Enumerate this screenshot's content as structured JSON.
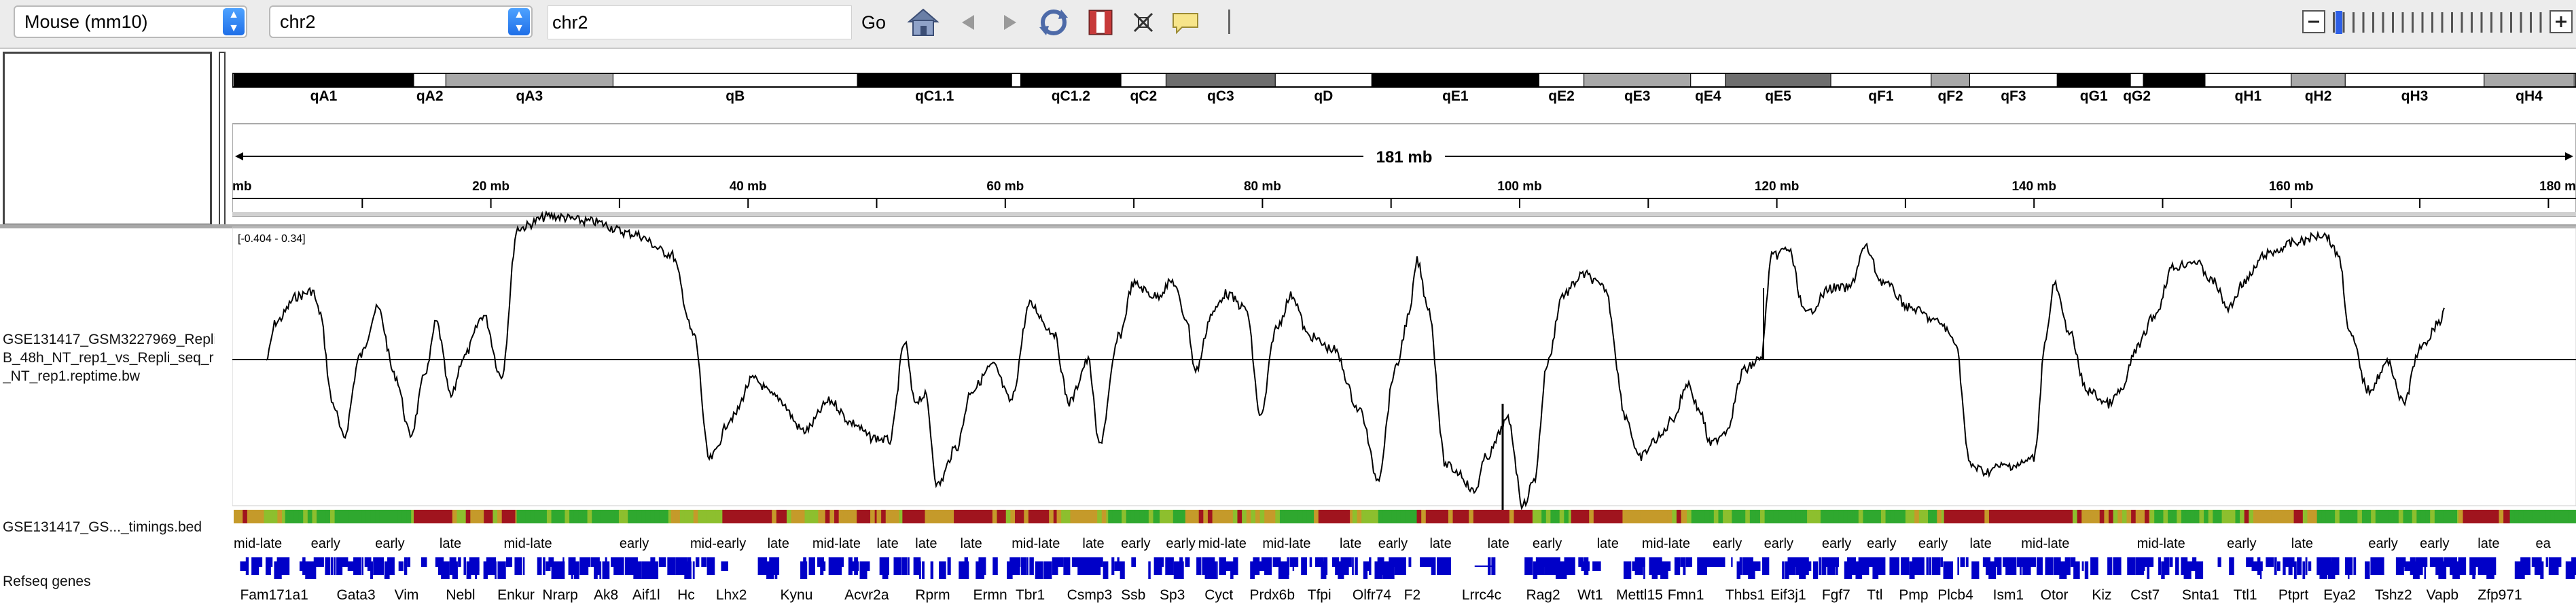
{
  "toolbar": {
    "genome": "Mouse (mm10)",
    "chromosome": "chr2",
    "locus": "chr2",
    "go_label": "Go",
    "icons": [
      "home-icon",
      "back-icon",
      "forward-icon",
      "refresh-icon",
      "roi-icon",
      "resize-icon",
      "popup-text-icon"
    ]
  },
  "ruler": {
    "span_label": "181 mb",
    "start_label": "mb",
    "end_label": "180 m",
    "ticks": [
      {
        "mb": 20,
        "label": "20 mb"
      },
      {
        "mb": 40,
        "label": "40 mb"
      },
      {
        "mb": 60,
        "label": "60 mb"
      },
      {
        "mb": 80,
        "label": "80 mb"
      },
      {
        "mb": 100,
        "label": "100 mb"
      },
      {
        "mb": 120,
        "label": "120 mb"
      },
      {
        "mb": 140,
        "label": "140 mb"
      },
      {
        "mb": 160,
        "label": "160 mb"
      }
    ]
  },
  "ideogram": {
    "bands": [
      {
        "name": "qA1",
        "start": 0,
        "end": 14,
        "stain": "black",
        "label": "qA1"
      },
      {
        "name": "qA2",
        "start": 14,
        "end": 16.5,
        "stain": "white",
        "label": "qA2"
      },
      {
        "name": "qA3",
        "start": 16.5,
        "end": 29.5,
        "stain": "gray",
        "label": "qA3"
      },
      {
        "name": "qB",
        "start": 29.5,
        "end": 48.5,
        "stain": "white",
        "label": "qB"
      },
      {
        "name": "qC1.1",
        "start": 48.5,
        "end": 60.5,
        "stain": "black",
        "label": "qC1.1"
      },
      {
        "name": "qC1.2a",
        "start": 60.5,
        "end": 61.2,
        "stain": "white",
        "label": ""
      },
      {
        "name": "qC1.2",
        "start": 61.2,
        "end": 69,
        "stain": "black",
        "label": "qC1.2"
      },
      {
        "name": "qC2",
        "start": 69,
        "end": 72.5,
        "stain": "white",
        "label": "qC2"
      },
      {
        "name": "qC3",
        "start": 72.5,
        "end": 81,
        "stain": "darkgray",
        "label": "qC3"
      },
      {
        "name": "qD",
        "start": 81,
        "end": 88.5,
        "stain": "white",
        "label": "qD"
      },
      {
        "name": "qE1",
        "start": 88.5,
        "end": 101.5,
        "stain": "black",
        "label": "qE1"
      },
      {
        "name": "qE2",
        "start": 101.5,
        "end": 105,
        "stain": "white",
        "label": "qE2"
      },
      {
        "name": "qE3",
        "start": 105,
        "end": 113.3,
        "stain": "gray",
        "label": "qE3"
      },
      {
        "name": "qE4",
        "start": 113.3,
        "end": 116,
        "stain": "white",
        "label": "qE4"
      },
      {
        "name": "qE5",
        "start": 116,
        "end": 124.2,
        "stain": "darkgray",
        "label": "qE5"
      },
      {
        "name": "qF1",
        "start": 124.2,
        "end": 132,
        "stain": "white",
        "label": "qF1"
      },
      {
        "name": "qF2",
        "start": 132,
        "end": 135,
        "stain": "gray",
        "label": "qF2"
      },
      {
        "name": "qF3",
        "start": 135,
        "end": 141.8,
        "stain": "white",
        "label": "qF3"
      },
      {
        "name": "qG1",
        "start": 141.8,
        "end": 147.5,
        "stain": "black",
        "label": "qG1"
      },
      {
        "name": "qG2",
        "start": 147.5,
        "end": 148.5,
        "stain": "white",
        "label": "qG2"
      },
      {
        "name": "qG3",
        "start": 148.5,
        "end": 153.3,
        "stain": "black",
        "label": ""
      },
      {
        "name": "qH1",
        "start": 153.3,
        "end": 160,
        "stain": "white",
        "label": "qH1"
      },
      {
        "name": "qH2",
        "start": 160,
        "end": 164.2,
        "stain": "gray",
        "label": "qH2"
      },
      {
        "name": "qH3",
        "start": 164.2,
        "end": 175,
        "stain": "white",
        "label": "qH3"
      },
      {
        "name": "qH4",
        "start": 175,
        "end": 182,
        "stain": "gray",
        "label": "qH4"
      }
    ]
  },
  "tracks": {
    "signal": {
      "name": "GSE131417_GSM3227969_Repli\nB_48h_NT_rep1_vs_Repli_seq_r\n_NT_rep1.reptime.bw",
      "range_label": "[-0.404 - 0.34]",
      "color": "#000000"
    },
    "timing": {
      "name": "GSE131417_GS..._timings.bed",
      "labels": [
        {
          "mb": 0,
          "text": "mid-late"
        },
        {
          "mb": 6,
          "text": "early"
        },
        {
          "mb": 11,
          "text": "early"
        },
        {
          "mb": 16,
          "text": "late"
        },
        {
          "mb": 21,
          "text": "mid-late"
        },
        {
          "mb": 30,
          "text": "early"
        },
        {
          "mb": 35.5,
          "text": "mid-early"
        },
        {
          "mb": 41.5,
          "text": "late"
        },
        {
          "mb": 45,
          "text": "mid-late"
        },
        {
          "mb": 50,
          "text": "late"
        },
        {
          "mb": 53,
          "text": "late"
        },
        {
          "mb": 56.5,
          "text": "late"
        },
        {
          "mb": 60.5,
          "text": "mid-late"
        },
        {
          "mb": 66,
          "text": "late"
        },
        {
          "mb": 69,
          "text": "early"
        },
        {
          "mb": 72.5,
          "text": "early"
        },
        {
          "mb": 75,
          "text": "mid-late"
        },
        {
          "mb": 80,
          "text": "mid-late"
        },
        {
          "mb": 86,
          "text": "late"
        },
        {
          "mb": 89,
          "text": "early"
        },
        {
          "mb": 93,
          "text": "late"
        },
        {
          "mb": 97.5,
          "text": "late"
        },
        {
          "mb": 101,
          "text": "early"
        },
        {
          "mb": 106,
          "text": "late"
        },
        {
          "mb": 109.5,
          "text": "mid-late"
        },
        {
          "mb": 115,
          "text": "early"
        },
        {
          "mb": 119,
          "text": "early"
        },
        {
          "mb": 123.5,
          "text": "early"
        },
        {
          "mb": 127,
          "text": "early"
        },
        {
          "mb": 131,
          "text": "early"
        },
        {
          "mb": 135,
          "text": "late"
        },
        {
          "mb": 139,
          "text": "mid-late"
        },
        {
          "mb": 148,
          "text": "mid-late"
        },
        {
          "mb": 155,
          "text": "early"
        },
        {
          "mb": 160,
          "text": "late"
        },
        {
          "mb": 166,
          "text": "early"
        },
        {
          "mb": 170,
          "text": "early"
        },
        {
          "mb": 174.5,
          "text": "late"
        },
        {
          "mb": 179,
          "text": "ea"
        }
      ]
    },
    "genes": {
      "name": "Refseq genes",
      "color": "#0000c8",
      "labels": [
        {
          "mb": 0.5,
          "text": "Fam171a1"
        },
        {
          "mb": 8,
          "text": "Gata3"
        },
        {
          "mb": 12.5,
          "text": "Vim"
        },
        {
          "mb": 16.5,
          "text": "Nebl"
        },
        {
          "mb": 20.5,
          "text": "Enkur"
        },
        {
          "mb": 24,
          "text": "Nrarp"
        },
        {
          "mb": 28,
          "text": "Ak8"
        },
        {
          "mb": 31,
          "text": "Aif1l"
        },
        {
          "mb": 34.5,
          "text": "Hc"
        },
        {
          "mb": 37.5,
          "text": "Lhx2"
        },
        {
          "mb": 42.5,
          "text": "Kynu"
        },
        {
          "mb": 47.5,
          "text": "Acvr2a"
        },
        {
          "mb": 53,
          "text": "Rprm"
        },
        {
          "mb": 57.5,
          "text": "Ermn"
        },
        {
          "mb": 60.8,
          "text": "Tbr1"
        },
        {
          "mb": 64.8,
          "text": "Csmp3"
        },
        {
          "mb": 69,
          "text": "Ssb"
        },
        {
          "mb": 72,
          "text": "Sp3"
        },
        {
          "mb": 75.5,
          "text": "Cyct"
        },
        {
          "mb": 79,
          "text": "Prdx6b"
        },
        {
          "mb": 83.5,
          "text": "Tfpi"
        },
        {
          "mb": 87,
          "text": "Olfr74"
        },
        {
          "mb": 91,
          "text": "F2"
        },
        {
          "mb": 95.5,
          "text": "Lrrc4c"
        },
        {
          "mb": 100.5,
          "text": "Rag2"
        },
        {
          "mb": 104.5,
          "text": "Wt1"
        },
        {
          "mb": 107.5,
          "text": "Mettl15"
        },
        {
          "mb": 111.5,
          "text": "Fmn1"
        },
        {
          "mb": 116,
          "text": "Thbs1"
        },
        {
          "mb": 119.5,
          "text": "Eif3j1"
        },
        {
          "mb": 123.5,
          "text": "Fgf7"
        },
        {
          "mb": 127,
          "text": "Ttl"
        },
        {
          "mb": 129.5,
          "text": "Pmp"
        },
        {
          "mb": 132.5,
          "text": "Plcb4"
        },
        {
          "mb": 136.8,
          "text": "Ism1"
        },
        {
          "mb": 140.5,
          "text": "Otor"
        },
        {
          "mb": 144.5,
          "text": "Kiz"
        },
        {
          "mb": 147.5,
          "text": "Cst7"
        },
        {
          "mb": 151.5,
          "text": "Snta1"
        },
        {
          "mb": 155.5,
          "text": "Ttl1"
        },
        {
          "mb": 159,
          "text": "Ptprt"
        },
        {
          "mb": 162.5,
          "text": "Eya2"
        },
        {
          "mb": 166.5,
          "text": "Tshz2"
        },
        {
          "mb": 170.5,
          "text": "Vapb"
        },
        {
          "mb": 174.5,
          "text": "Zfp971"
        }
      ]
    }
  },
  "colors": {
    "early": "#2fa82f",
    "mid_early": "#8dbf2e",
    "mid_late": "#c59a2a",
    "late": "#a0141e"
  }
}
